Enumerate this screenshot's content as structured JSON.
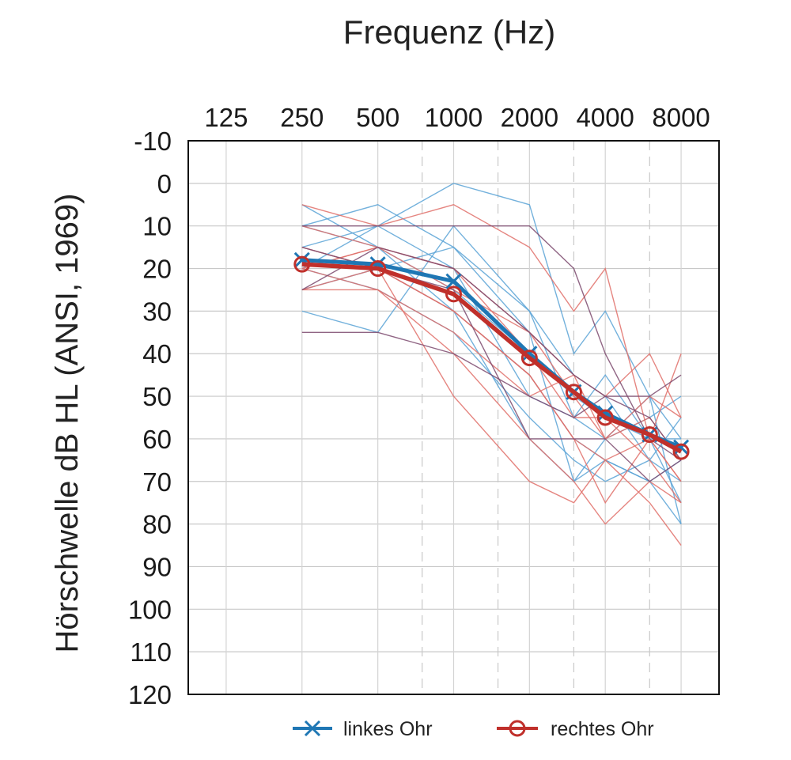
{
  "chart_data": {
    "type": "line",
    "title": "Frequenz (Hz)",
    "ylabel": "Hörschwelle dB HL (ANSI, 1969)",
    "x": [
      250,
      500,
      1000,
      2000,
      3000,
      4000,
      6000,
      8000
    ],
    "x_tick_labels": [
      "125",
      "250",
      "500",
      "1000",
      "2000",
      "4000",
      "8000"
    ],
    "y_tick_labels": [
      "-10",
      "0",
      "10",
      "20",
      "30",
      "40",
      "50",
      "60",
      "70",
      "80",
      "90",
      "100",
      "110",
      "120"
    ],
    "ylim": [
      -10,
      120
    ],
    "y_inverted": true,
    "x_scale": "log2 (audiogram)",
    "x_axis_position": "top",
    "grid": true,
    "legend_position": "bottom",
    "series": [
      {
        "name": "linkes Ohr",
        "color": "#1f77b4",
        "marker": "x",
        "values": [
          18,
          19,
          23,
          40,
          49,
          54,
          59,
          62
        ]
      },
      {
        "name": "rechtes Ohr",
        "color": "#c0302b",
        "marker": "o",
        "values": [
          19,
          20,
          26,
          41,
          49,
          55,
          59,
          63
        ]
      }
    ],
    "individual_curves": {
      "x": [
        250,
        500,
        1000,
        2000,
        3000,
        4000,
        6000,
        8000
      ],
      "blue": [
        [
          20,
          10,
          0,
          5,
          40,
          30,
          50,
          80
        ],
        [
          30,
          35,
          10,
          30,
          55,
          45,
          60,
          75
        ],
        [
          15,
          20,
          30,
          45,
          60,
          65,
          70,
          65
        ],
        [
          10,
          15,
          25,
          40,
          50,
          55,
          60,
          60
        ],
        [
          25,
          20,
          15,
          35,
          70,
          60,
          55,
          50
        ],
        [
          10,
          5,
          15,
          30,
          45,
          50,
          65,
          55
        ],
        [
          20,
          25,
          35,
          55,
          65,
          70,
          65,
          70
        ],
        [
          15,
          10,
          20,
          50,
          55,
          60,
          50,
          60
        ],
        [
          5,
          15,
          30,
          60,
          70,
          65,
          70,
          80
        ]
      ],
      "red": [
        [
          5,
          10,
          5,
          15,
          30,
          20,
          60,
          70
        ],
        [
          25,
          25,
          35,
          50,
          45,
          50,
          40,
          55
        ],
        [
          20,
          15,
          25,
          35,
          50,
          60,
          55,
          65
        ],
        [
          15,
          20,
          30,
          45,
          60,
          65,
          60,
          70
        ],
        [
          25,
          20,
          50,
          70,
          75,
          65,
          75,
          85
        ],
        [
          10,
          15,
          20,
          40,
          55,
          55,
          65,
          75
        ],
        [
          20,
          25,
          40,
          60,
          70,
          80,
          70,
          75
        ],
        [
          15,
          20,
          30,
          45,
          60,
          75,
          60,
          40
        ],
        [
          20,
          15,
          20,
          35,
          45,
          60,
          50,
          55
        ]
      ],
      "purple": [
        [
          10,
          10,
          10,
          10,
          20,
          40,
          60,
          65
        ],
        [
          35,
          35,
          40,
          50,
          55,
          50,
          50,
          45
        ],
        [
          25,
          15,
          20,
          35,
          45,
          50,
          55,
          65
        ],
        [
          15,
          20,
          25,
          60,
          60,
          60,
          70,
          65
        ]
      ]
    }
  },
  "legend": {
    "left_label": "linkes Ohr",
    "right_label": "rechtes Ohr"
  }
}
